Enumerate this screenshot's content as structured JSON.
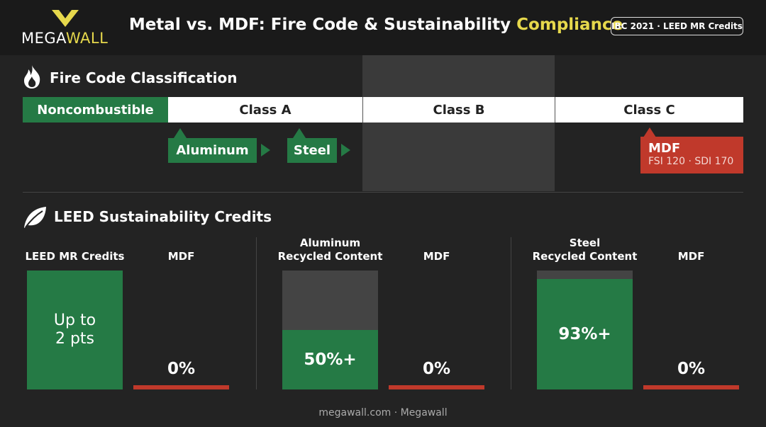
{
  "header": {
    "logo_a": "MEGA",
    "logo_b": "WALL",
    "title_a": "Metal vs. MDF: Fire Code & Sustainability",
    "title_b": "Compliance",
    "badge": "IBC 2021 · LEED MR Credits"
  },
  "fire": {
    "title": "Fire Code Classification",
    "scale": [
      "Noncombustible",
      "Class A",
      "Class B",
      "Class C"
    ],
    "tags": [
      "Aluminum",
      "Steel"
    ],
    "mdf": {
      "label": "MDF",
      "detail": "FSI 120 · SDI 170"
    }
  },
  "leed": {
    "title": "LEED Sustainability Credits",
    "panels": [
      {
        "ylim": [
          0,
          2
        ],
        "bars": [
          {
            "label": [
              "LEED MR Credits"
            ],
            "value": 2,
            "value_label": "Up to 2 pts"
          },
          {
            "label": [
              "MDF"
            ],
            "value": 0,
            "value_label": "0%"
          }
        ]
      },
      {
        "ylim": [
          0,
          100
        ],
        "bars": [
          {
            "label": [
              "Aluminum",
              "Recycled Content"
            ],
            "value": 50,
            "value_label": "50%+"
          },
          {
            "label": [
              "MDF"
            ],
            "value": 0,
            "value_label": "0%"
          }
        ]
      },
      {
        "ylim": [
          0,
          100
        ],
        "bars": [
          {
            "label": [
              "Steel",
              "Recycled Content"
            ],
            "value": 93,
            "value_label": "93%+"
          },
          {
            "label": [
              "MDF"
            ],
            "value": 0,
            "value_label": "0%"
          }
        ]
      }
    ]
  },
  "footer": "megawall.com · Megawall"
}
